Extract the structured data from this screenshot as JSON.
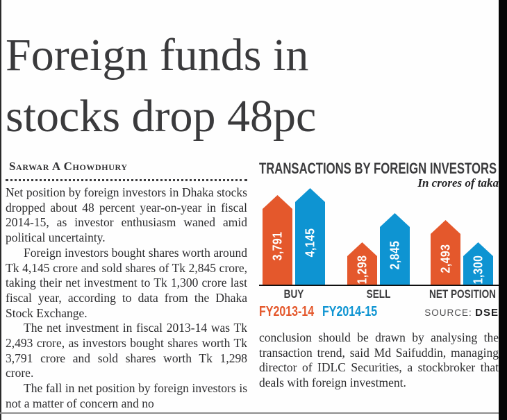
{
  "article": {
    "headline_line1": "Foreign funds in",
    "headline_line2": "stocks drop 48pc",
    "byline": "Sarwar A Chowdhury",
    "left_paragraphs": [
      "Net position by foreign investors in Dhaka stocks dropped about 48 percent year-on-year in fiscal 2014-15, as investor enthusiasm waned amid political uncertainty.",
      "Foreign investors bought shares worth around Tk 4,145 crore and sold shares of Tk 2,845 crore, taking their net investment to Tk 1,300 crore last fiscal year, according to data from the Dhaka Stock Exchange.",
      "The net investment in fiscal 2013-14 was Tk 2,493 crore, as investors bought shares worth Tk 3,791 crore and sold shares worth Tk 1,298 crore.",
      "The fall in net position by foreign investors is not a matter of concern and no"
    ],
    "right_paragraphs": [
      "conclusion should be drawn by analysing the transaction trend, said Md Saifuddin, managing director of IDLC Securities, a stockbroker that deals with foreign investment."
    ]
  },
  "chart": {
    "source_label": "SOURCE:",
    "source_value": "DSE"
  },
  "chart_data": {
    "type": "bar",
    "title": "TRANSACTIONS BY FOREIGN INVESTORS",
    "subtitle": "In crores of taka",
    "categories": [
      "BUY",
      "SELL",
      "NET POSITION"
    ],
    "series": [
      {
        "name": "FY2013-14",
        "color": "#e4582c",
        "values": [
          3791,
          1298,
          2493
        ],
        "labels": [
          "3,791",
          "1,298",
          "2,493"
        ]
      },
      {
        "name": "FY2014-15",
        "color": "#0e94d2",
        "values": [
          4145,
          2845,
          1300
        ],
        "labels": [
          "4,145",
          "2,845",
          "1,300"
        ]
      }
    ],
    "source": "DSE",
    "unit": "crores of taka",
    "ylim": [
      0,
      4500
    ],
    "bar_shape": "upward-arrow",
    "grid": false,
    "legend_position": "bottom-left"
  },
  "colors": {
    "fy2013_14_orange": "#e4582c",
    "fy2014_15_blue": "#0e94d2",
    "headline_text": "#3a3a3c",
    "body_text": "#2c2c2e",
    "page_edge_black": "#050505",
    "bottom_rule_gray": "#8d8d8d"
  }
}
